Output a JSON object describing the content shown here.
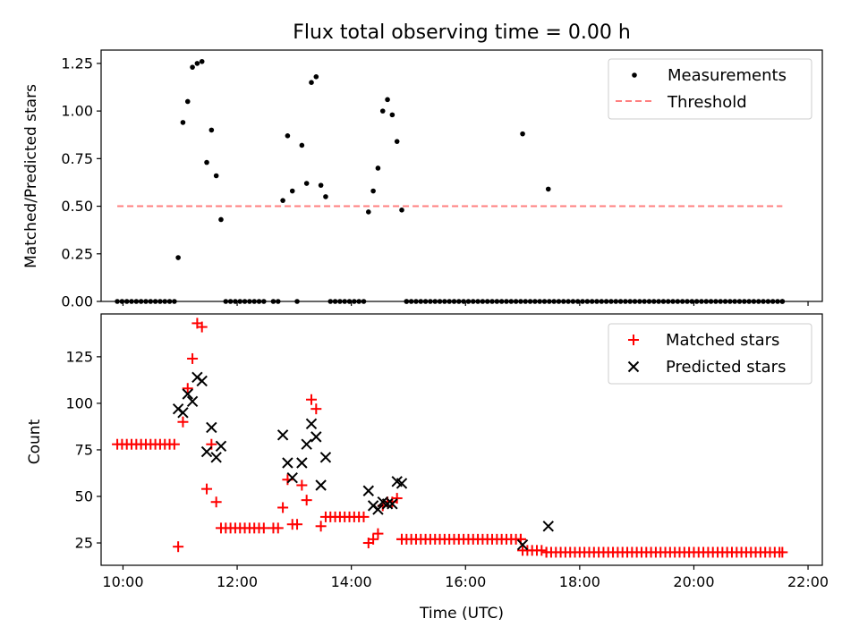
{
  "chart_data": [
    {
      "type": "scatter",
      "title": "Flux total observing time = 0.00 h",
      "xlabel": "",
      "ylabel": "Matched/Predicted stars",
      "ylim": [
        0,
        1.32
      ],
      "yticks": [
        "0.00",
        "0.25",
        "0.50",
        "0.75",
        "1.00",
        "1.25"
      ],
      "x_ticks_shown": false,
      "legend_position": "top-right",
      "series": [
        {
          "name": "Measurements",
          "marker": "dot",
          "color": "#000000",
          "points": [
            [
              "09:54",
              0.0
            ],
            [
              "09:59",
              0.0
            ],
            [
              "10:04",
              0.0
            ],
            [
              "10:09",
              0.0
            ],
            [
              "10:14",
              0.0
            ],
            [
              "10:19",
              0.0
            ],
            [
              "10:24",
              0.0
            ],
            [
              "10:29",
              0.0
            ],
            [
              "10:34",
              0.0
            ],
            [
              "10:39",
              0.0
            ],
            [
              "10:44",
              0.0
            ],
            [
              "10:49",
              0.0
            ],
            [
              "10:54",
              0.0
            ],
            [
              "10:58",
              0.23
            ],
            [
              "11:03",
              0.94
            ],
            [
              "11:08",
              1.05
            ],
            [
              "11:13",
              1.23
            ],
            [
              "11:18",
              1.25
            ],
            [
              "11:23",
              1.26
            ],
            [
              "11:28",
              0.73
            ],
            [
              "11:33",
              0.9
            ],
            [
              "11:38",
              0.66
            ],
            [
              "11:43",
              0.43
            ],
            [
              "11:48",
              0.0
            ],
            [
              "11:53",
              0.0
            ],
            [
              "11:58",
              0.0
            ],
            [
              "12:03",
              0.0
            ],
            [
              "12:08",
              0.0
            ],
            [
              "12:13",
              0.0
            ],
            [
              "12:18",
              0.0
            ],
            [
              "12:23",
              0.0
            ],
            [
              "12:28",
              0.0
            ],
            [
              "12:38",
              0.0
            ],
            [
              "12:43",
              0.0
            ],
            [
              "12:48",
              0.53
            ],
            [
              "12:53",
              0.87
            ],
            [
              "12:58",
              0.58
            ],
            [
              "13:03",
              0.0
            ],
            [
              "13:08",
              0.82
            ],
            [
              "13:13",
              0.62
            ],
            [
              "13:18",
              1.15
            ],
            [
              "13:23",
              1.18
            ],
            [
              "13:28",
              0.61
            ],
            [
              "13:33",
              0.55
            ],
            [
              "13:38",
              0.0
            ],
            [
              "13:43",
              0.0
            ],
            [
              "13:48",
              0.0
            ],
            [
              "13:53",
              0.0
            ],
            [
              "13:58",
              0.0
            ],
            [
              "14:03",
              0.0
            ],
            [
              "14:08",
              0.0
            ],
            [
              "14:13",
              0.0
            ],
            [
              "14:18",
              0.47
            ],
            [
              "14:23",
              0.58
            ],
            [
              "14:28",
              0.7
            ],
            [
              "14:33",
              1.0
            ],
            [
              "14:38",
              1.06
            ],
            [
              "14:43",
              0.98
            ],
            [
              "14:48",
              0.84
            ],
            [
              "14:53",
              0.48
            ],
            [
              "14:58",
              0.0
            ],
            [
              "17:00",
              0.88
            ],
            [
              "17:27",
              0.59
            ],
            [
              "21:33",
              0.0
            ]
          ],
          "zero_run": {
            "from": "14:58",
            "to": "21:33",
            "step_minutes": 5,
            "value": 0.0
          }
        },
        {
          "name": "Threshold",
          "marker": "dashed-line",
          "color": "#ff7f7f",
          "points": [
            [
              "09:54",
              0.5
            ],
            [
              "21:33",
              0.5
            ]
          ]
        }
      ]
    },
    {
      "type": "scatter",
      "title": "",
      "xlabel": "Time (UTC)",
      "ylabel": "Count",
      "ylim": [
        13,
        148
      ],
      "yticks": [
        "25",
        "50",
        "75",
        "100",
        "125"
      ],
      "xlim": [
        "09:37",
        "22:15"
      ],
      "xticks": [
        "10:00",
        "12:00",
        "14:00",
        "16:00",
        "18:00",
        "20:00",
        "22:00"
      ],
      "legend_position": "top-right",
      "series": [
        {
          "name": "Matched stars",
          "marker": "plus",
          "color": "#ff0000",
          "points": [
            [
              "09:54",
              78
            ],
            [
              "09:59",
              78
            ],
            [
              "10:04",
              78
            ],
            [
              "10:09",
              78
            ],
            [
              "10:14",
              78
            ],
            [
              "10:19",
              78
            ],
            [
              "10:24",
              78
            ],
            [
              "10:29",
              78
            ],
            [
              "10:34",
              78
            ],
            [
              "10:39",
              78
            ],
            [
              "10:44",
              78
            ],
            [
              "10:49",
              78
            ],
            [
              "10:54",
              78
            ],
            [
              "10:58",
              23
            ],
            [
              "11:03",
              90
            ],
            [
              "11:08",
              108
            ],
            [
              "11:13",
              124
            ],
            [
              "11:18",
              143
            ],
            [
              "11:23",
              141
            ],
            [
              "11:28",
              54
            ],
            [
              "11:33",
              78
            ],
            [
              "11:38",
              47
            ],
            [
              "11:43",
              33
            ],
            [
              "11:48",
              33
            ],
            [
              "11:53",
              33
            ],
            [
              "11:58",
              33
            ],
            [
              "12:03",
              33
            ],
            [
              "12:08",
              33
            ],
            [
              "12:13",
              33
            ],
            [
              "12:18",
              33
            ],
            [
              "12:23",
              33
            ],
            [
              "12:28",
              33
            ],
            [
              "12:38",
              33
            ],
            [
              "12:43",
              33
            ],
            [
              "12:48",
              44
            ],
            [
              "12:53",
              59
            ],
            [
              "12:58",
              35
            ],
            [
              "13:03",
              35
            ],
            [
              "13:08",
              56
            ],
            [
              "13:13",
              48
            ],
            [
              "13:18",
              102
            ],
            [
              "13:23",
              97
            ],
            [
              "13:28",
              34
            ],
            [
              "13:33",
              39
            ],
            [
              "13:38",
              39
            ],
            [
              "13:43",
              39
            ],
            [
              "13:48",
              39
            ],
            [
              "13:53",
              39
            ],
            [
              "13:58",
              39
            ],
            [
              "14:03",
              39
            ],
            [
              "14:08",
              39
            ],
            [
              "14:13",
              39
            ],
            [
              "14:18",
              25
            ],
            [
              "14:23",
              27
            ],
            [
              "14:28",
              30
            ],
            [
              "14:33",
              45
            ],
            [
              "14:38",
              47
            ],
            [
              "14:43",
              47
            ],
            [
              "14:48",
              49
            ],
            [
              "14:53",
              27
            ],
            [
              "16:58",
              27
            ],
            [
              "17:00",
              21
            ],
            [
              "17:05",
              21
            ],
            [
              "17:10",
              21
            ],
            [
              "17:15",
              21
            ],
            [
              "17:20",
              21
            ],
            [
              "17:25",
              20
            ],
            [
              "21:33",
              20
            ]
          ],
          "runs": [
            {
              "from": "14:53",
              "to": "16:58",
              "step_minutes": 5,
              "value": 27
            },
            {
              "from": "17:25",
              "to": "21:33",
              "step_minutes": 5,
              "value": 20
            }
          ]
        },
        {
          "name": "Predicted stars",
          "marker": "x",
          "color": "#000000",
          "points": [
            [
              "10:58",
              97
            ],
            [
              "11:03",
              95
            ],
            [
              "11:08",
              105
            ],
            [
              "11:13",
              101
            ],
            [
              "11:18",
              114
            ],
            [
              "11:23",
              112
            ],
            [
              "11:28",
              74
            ],
            [
              "11:33",
              87
            ],
            [
              "11:38",
              71
            ],
            [
              "11:43",
              77
            ],
            [
              "12:48",
              83
            ],
            [
              "12:53",
              68
            ],
            [
              "12:58",
              60
            ],
            [
              "13:08",
              68
            ],
            [
              "13:13",
              78
            ],
            [
              "13:18",
              89
            ],
            [
              "13:23",
              82
            ],
            [
              "13:28",
              56
            ],
            [
              "13:33",
              71
            ],
            [
              "14:18",
              53
            ],
            [
              "14:23",
              45
            ],
            [
              "14:28",
              43
            ],
            [
              "14:33",
              47
            ],
            [
              "14:38",
              46
            ],
            [
              "14:43",
              46
            ],
            [
              "14:48",
              58
            ],
            [
              "14:53",
              57
            ],
            [
              "17:00",
              24
            ],
            [
              "17:27",
              34
            ]
          ]
        }
      ]
    }
  ]
}
